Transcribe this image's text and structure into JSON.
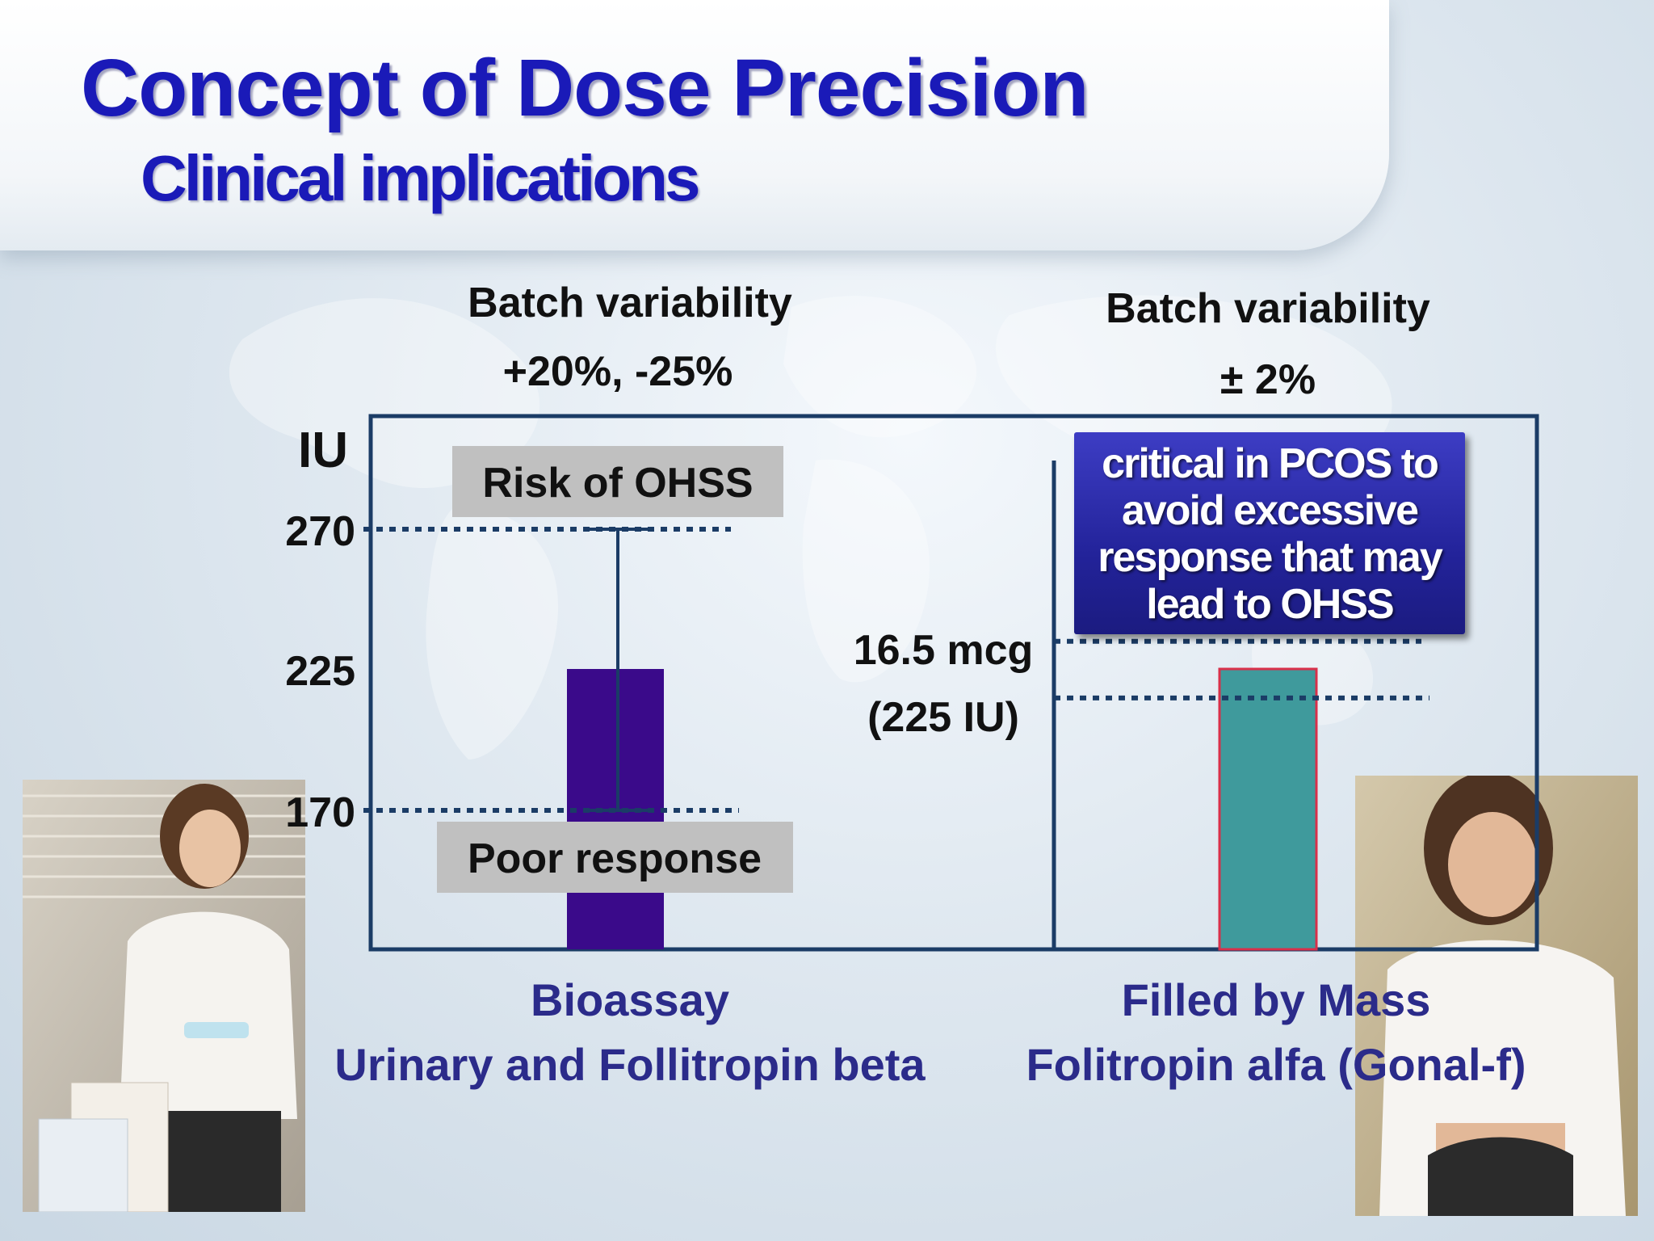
{
  "slide": {
    "title": "Concept of Dose Precision",
    "subtitle": "Clinical implications"
  },
  "left_panel": {
    "batch_label": "Batch variability",
    "batch_value": "+20%, -25%",
    "caption_line1": "Bioassay",
    "caption_line2": "Urinary and Follitropin beta"
  },
  "right_panel": {
    "batch_label": "Batch variability",
    "batch_value": "± 2%",
    "callout_lines": [
      "critical in PCOS to",
      "avoid excessive",
      "response that may",
      "lead to OHSS"
    ],
    "caption_line1": "Filled by Mass",
    "caption_line2": "Folitropin alfa (Gonal-f)"
  },
  "chart_data": {
    "type": "bar",
    "ylabel": "IU",
    "y_ticks": [
      "270",
      "225",
      "170"
    ],
    "dose_label_line1": "16.5 mcg",
    "dose_label_line2": "(225 IU)",
    "categories": [
      "Bioassay",
      "Filled by Mass"
    ],
    "series": [
      {
        "values": [
          225,
          225
        ],
        "colors": [
          "#3a0a8a",
          "#3f9a9c"
        ]
      }
    ],
    "error_bars": [
      {
        "category": "Bioassay",
        "low": 170,
        "high": 270
      },
      {
        "category": "Filled by Mass",
        "low": 220,
        "high": 230
      }
    ],
    "annotations": [
      {
        "text": "Risk of OHSS",
        "at_value": 270
      },
      {
        "text": "Poor response",
        "at_value": 170
      }
    ],
    "colors": {
      "frame": "#1b3c66",
      "dotted": "#1b3c66",
      "label_box": "#c0c0c0"
    }
  }
}
